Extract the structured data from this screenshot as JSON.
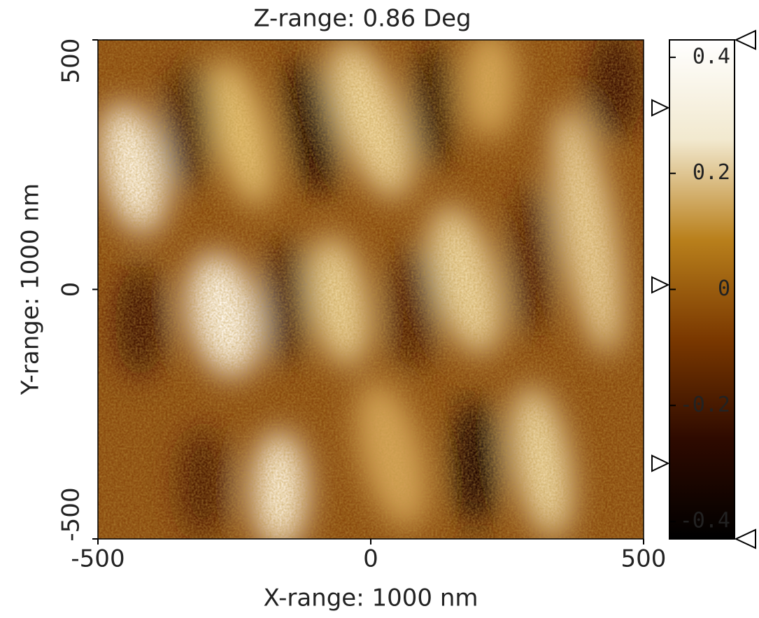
{
  "chart_data": {
    "type": "heatmap",
    "title": "Z-range: 0.86 Deg",
    "x_label": "X-range: 1000 nm",
    "y_label": "Y-range: 1000 nm",
    "xlim": [
      -500,
      500
    ],
    "xticks": [
      -500,
      0,
      500
    ],
    "ylim": [
      -500,
      500
    ],
    "yticks": [
      -500,
      0,
      500
    ],
    "colorbar": {
      "clim": [
        -0.43,
        0.43
      ],
      "ticks": [
        0.4,
        0.2,
        0,
        -0.2,
        -0.4
      ],
      "colormap": [
        "#000000",
        "#2e0a00",
        "#7a3800",
        "#b9801c",
        "#f2e9cf",
        "#ffffff"
      ]
    }
  }
}
